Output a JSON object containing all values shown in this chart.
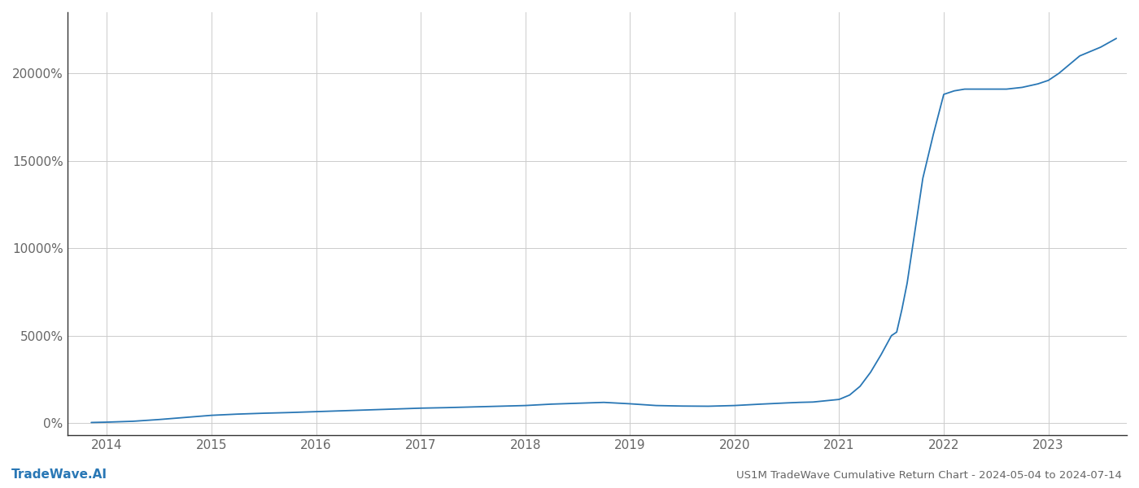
{
  "title_bottom": "US1M TradeWave Cumulative Return Chart - 2024-05-04 to 2024-07-14",
  "watermark": "TradeWave.AI",
  "line_color": "#2977b5",
  "background_color": "#ffffff",
  "grid_color": "#cccccc",
  "x_years": [
    2014,
    2015,
    2016,
    2017,
    2018,
    2019,
    2020,
    2021,
    2022,
    2023
  ],
  "y_ticks": [
    0,
    5000,
    10000,
    15000,
    20000
  ],
  "xlim_start": 2013.62,
  "xlim_end": 2023.75,
  "ylim_min": -700,
  "ylim_max": 23500,
  "data_x": [
    2013.85,
    2014.0,
    2014.25,
    2014.5,
    2014.75,
    2015.0,
    2015.25,
    2015.5,
    2015.75,
    2016.0,
    2016.25,
    2016.5,
    2016.75,
    2017.0,
    2017.25,
    2017.5,
    2017.75,
    2018.0,
    2018.25,
    2018.5,
    2018.75,
    2019.0,
    2019.25,
    2019.5,
    2019.75,
    2020.0,
    2020.25,
    2020.5,
    2020.62,
    2020.75,
    2021.0,
    2021.1,
    2021.2,
    2021.3,
    2021.4,
    2021.5,
    2021.55,
    2021.6,
    2021.65,
    2021.7,
    2021.75,
    2021.8,
    2021.9,
    2022.0,
    2022.1,
    2022.2,
    2022.3,
    2022.4,
    2022.5,
    2022.6,
    2022.75,
    2022.9,
    2023.0,
    2023.1,
    2023.2,
    2023.3,
    2023.5,
    2023.65
  ],
  "data_y": [
    30,
    50,
    100,
    200,
    320,
    440,
    510,
    560,
    600,
    650,
    700,
    750,
    800,
    850,
    880,
    920,
    960,
    1000,
    1080,
    1130,
    1180,
    1100,
    1000,
    970,
    960,
    1000,
    1080,
    1150,
    1180,
    1200,
    1350,
    1600,
    2100,
    2900,
    3900,
    5000,
    5200,
    6500,
    8000,
    10000,
    12000,
    14000,
    16500,
    18800,
    19000,
    19100,
    19100,
    19100,
    19100,
    19100,
    19200,
    19400,
    19600,
    20000,
    20500,
    21000,
    21500,
    22000
  ]
}
